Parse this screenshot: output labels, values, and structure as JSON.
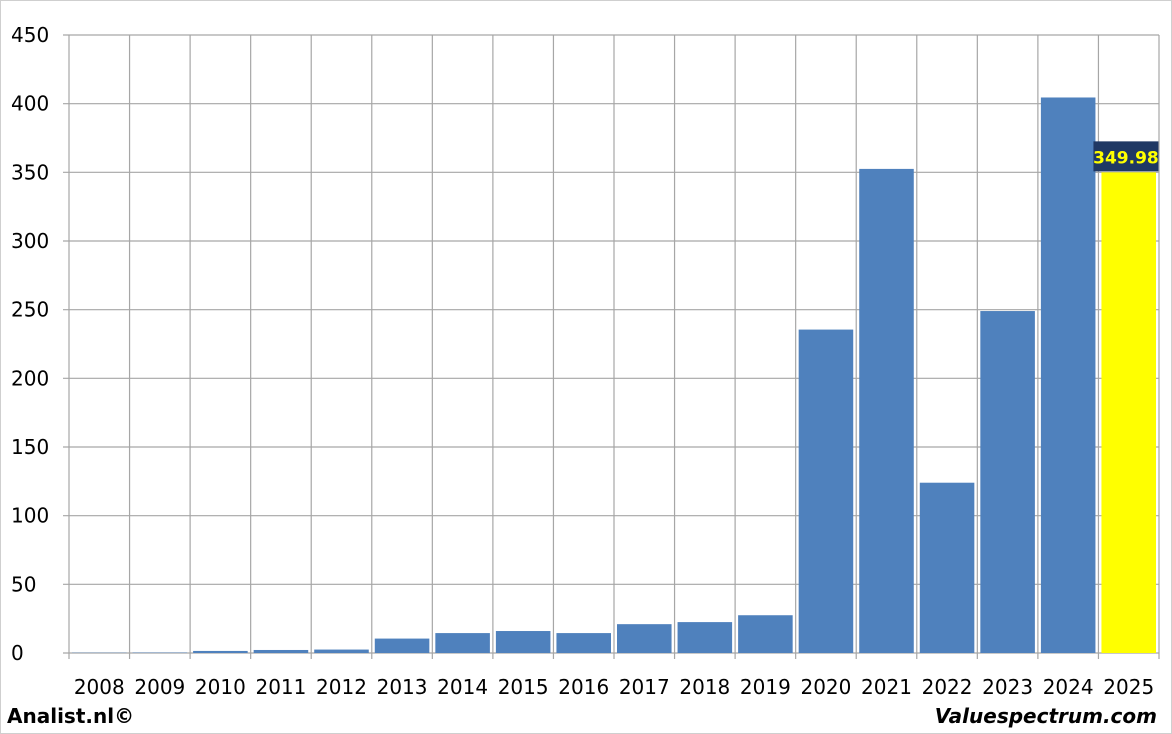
{
  "chart_data": {
    "type": "bar",
    "categories": [
      "2008",
      "2009",
      "2010",
      "2011",
      "2012",
      "2013",
      "2014",
      "2015",
      "2016",
      "2017",
      "2018",
      "2019",
      "2020",
      "2021",
      "2022",
      "2023",
      "2024",
      "2025"
    ],
    "values": [
      0.2,
      0.3,
      1.5,
      2.2,
      2.5,
      10.5,
      14.5,
      16,
      14.5,
      21,
      22.5,
      27.5,
      235.5,
      352.5,
      124,
      249,
      404.5,
      349.98
    ],
    "y_ticks": [
      0,
      50,
      100,
      150,
      200,
      250,
      300,
      350,
      400,
      450
    ],
    "ylim": [
      0,
      450
    ],
    "grid": true,
    "highlight_last": true,
    "highlight_label": "349.98",
    "colors": {
      "bar": "#4f81bd",
      "highlight": "#ffff00",
      "label_bg": "#1f3864",
      "label_text": "#ffff00",
      "grid": "#a6a6a6"
    }
  },
  "footer": {
    "left": "Analist.nl©",
    "right": "Valuespectrum.com"
  }
}
